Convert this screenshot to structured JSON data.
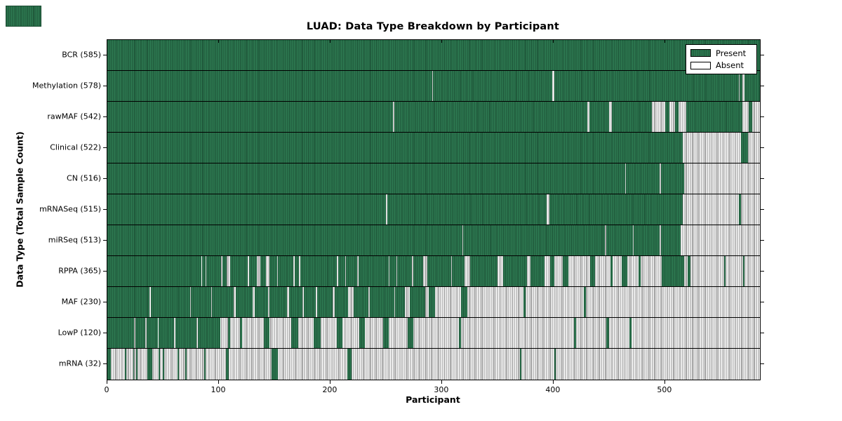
{
  "chart_data": {
    "type": "heatmap",
    "title": "LUAD: Data Type Breakdown by Participant",
    "xlabel": "Participant",
    "ylabel": "Data Type (Total Sample Count)",
    "x_ticks": [
      0,
      100,
      200,
      300,
      400,
      500
    ],
    "x_range": [
      0,
      585
    ],
    "grid": false,
    "legend": {
      "position": "upper right",
      "entries": [
        {
          "label": "Present",
          "color": "#2e7b52"
        },
        {
          "label": "Absent",
          "color": "#ffffff"
        }
      ]
    },
    "colors": {
      "present_fill": "#2e7b52",
      "present_edge": "#1b4d33",
      "absent_fill": "#ffffff",
      "absent_edge": "#9a9a9a",
      "axis_border": "#000000"
    },
    "rows": [
      {
        "data_type": "BCR",
        "total": 585,
        "label": "BCR (585)",
        "present_ranges": [
          [
            0,
            585
          ]
        ]
      },
      {
        "data_type": "Methylation",
        "total": 578,
        "label": "Methylation (578)",
        "present_ranges": [
          [
            0,
            291
          ],
          [
            292,
            399
          ],
          [
            401,
            566
          ],
          [
            567,
            569
          ],
          [
            571,
            585
          ]
        ]
      },
      {
        "data_type": "rawMAF",
        "total": 542,
        "label": "rawMAF (542)",
        "present_ranges": [
          [
            0,
            256
          ],
          [
            257,
            430
          ],
          [
            432,
            450
          ],
          [
            452,
            488
          ],
          [
            500,
            504
          ],
          [
            509,
            512
          ],
          [
            519,
            569
          ],
          [
            575,
            578
          ]
        ]
      },
      {
        "data_type": "Clinical",
        "total": 522,
        "label": "Clinical (522)",
        "present_ranges": [
          [
            0,
            516
          ],
          [
            568,
            574
          ]
        ]
      },
      {
        "data_type": "CN",
        "total": 516,
        "label": "CN (516)",
        "present_ranges": [
          [
            0,
            464
          ],
          [
            465,
            495
          ],
          [
            496,
            517
          ]
        ]
      },
      {
        "data_type": "mRNASeq",
        "total": 515,
        "label": "mRNASeq (515)",
        "present_ranges": [
          [
            0,
            250
          ],
          [
            251,
            394
          ],
          [
            396,
            516
          ],
          [
            566,
            568
          ]
        ]
      },
      {
        "data_type": "miRSeq",
        "total": 513,
        "label": "miRSeq (513)",
        "present_ranges": [
          [
            0,
            318
          ],
          [
            319,
            446
          ],
          [
            447,
            471
          ],
          [
            472,
            495
          ],
          [
            496,
            514
          ]
        ]
      },
      {
        "data_type": "RPPA",
        "total": 365,
        "label": "RPPA (365)",
        "present_ranges": [
          [
            0,
            84
          ],
          [
            85,
            88
          ],
          [
            89,
            102
          ],
          [
            103,
            107
          ],
          [
            110,
            126
          ],
          [
            127,
            134
          ],
          [
            137,
            142
          ],
          [
            145,
            152
          ],
          [
            153,
            167
          ],
          [
            168,
            172
          ],
          [
            173,
            206
          ],
          [
            207,
            213
          ],
          [
            214,
            224
          ],
          [
            225,
            252
          ],
          [
            253,
            259
          ],
          [
            260,
            273
          ],
          [
            274,
            283
          ],
          [
            287,
            308
          ],
          [
            309,
            320
          ],
          [
            325,
            350
          ],
          [
            355,
            376
          ],
          [
            379,
            392
          ],
          [
            397,
            401
          ],
          [
            408,
            413
          ],
          [
            433,
            437
          ],
          [
            451,
            453
          ],
          [
            461,
            466
          ],
          [
            476,
            478
          ],
          [
            497,
            517
          ],
          [
            520,
            523
          ],
          [
            553,
            554
          ],
          [
            570,
            571
          ]
        ]
      },
      {
        "data_type": "MAF",
        "total": 230,
        "label": "MAF (230)",
        "present_ranges": [
          [
            0,
            38
          ],
          [
            39,
            74
          ],
          [
            75,
            93
          ],
          [
            94,
            113
          ],
          [
            115,
            130
          ],
          [
            132,
            144
          ],
          [
            145,
            161
          ],
          [
            163,
            175
          ],
          [
            176,
            187
          ],
          [
            188,
            202
          ],
          [
            204,
            216
          ],
          [
            221,
            234
          ],
          [
            235,
            257
          ],
          [
            258,
            267
          ],
          [
            271,
            285
          ],
          [
            288,
            294
          ],
          [
            317,
            323
          ],
          [
            373,
            375
          ],
          [
            427,
            429
          ]
        ]
      },
      {
        "data_type": "LowP",
        "total": 120,
        "label": "LowP (120)",
        "present_ranges": [
          [
            0,
            24
          ],
          [
            25,
            34
          ],
          [
            35,
            45
          ],
          [
            46,
            60
          ],
          [
            61,
            80
          ],
          [
            81,
            101
          ],
          [
            108,
            110
          ],
          [
            119,
            121
          ],
          [
            140,
            145
          ],
          [
            165,
            171
          ],
          [
            185,
            191
          ],
          [
            206,
            211
          ],
          [
            226,
            231
          ],
          [
            247,
            252
          ],
          [
            269,
            274
          ],
          [
            315,
            317
          ],
          [
            418,
            420
          ],
          [
            447,
            450
          ],
          [
            468,
            470
          ]
        ]
      },
      {
        "data_type": "mRNA",
        "total": 32,
        "label": "mRNA (32)",
        "present_ranges": [
          [
            0,
            3
          ],
          [
            16,
            17
          ],
          [
            23,
            24
          ],
          [
            26,
            27
          ],
          [
            36,
            40
          ],
          [
            46,
            47
          ],
          [
            50,
            51
          ],
          [
            63,
            64
          ],
          [
            70,
            71
          ],
          [
            87,
            88
          ],
          [
            106,
            109
          ],
          [
            147,
            153
          ],
          [
            215,
            219
          ],
          [
            370,
            371
          ],
          [
            401,
            402
          ]
        ]
      }
    ]
  }
}
